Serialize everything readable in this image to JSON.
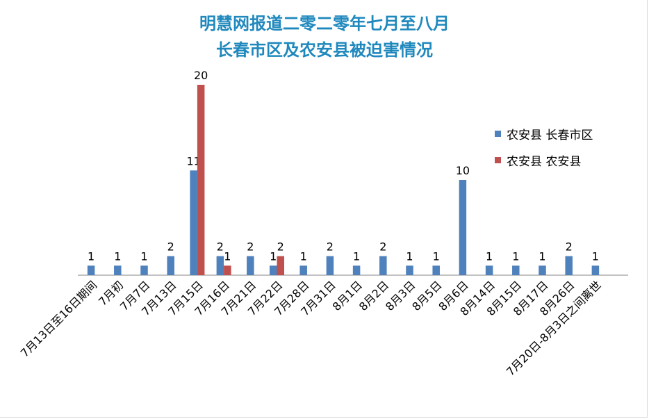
{
  "chart_data": {
    "type": "bar",
    "title_lines": [
      "明慧网报道二零二零年七月至八月",
      "长春市区及农安县被迫害情况"
    ],
    "categories": [
      "7月13日至16日期间",
      "7月初",
      "7月7日",
      "7月13日",
      "7月15日",
      "7月16日",
      "7月21日",
      "7月22日",
      "7月28日",
      "7月31日",
      "8月1日",
      "8月2日",
      "8月3日",
      "8月5日",
      "8月6日",
      "8月14日",
      "8月15日",
      "8月17日",
      "8月26日",
      "7月20日-8月3日之间离世"
    ],
    "series": [
      {
        "name": "农安县 长春市区",
        "color": "#4f81bd",
        "values": [
          1,
          1,
          1,
          2,
          11,
          2,
          2,
          1,
          1,
          2,
          1,
          2,
          1,
          1,
          10,
          1,
          1,
          1,
          2,
          1
        ]
      },
      {
        "name": "农安县 农安县",
        "color": "#c0504d",
        "values": [
          null,
          null,
          null,
          null,
          20,
          1,
          null,
          2,
          null,
          null,
          null,
          null,
          null,
          null,
          null,
          null,
          null,
          null,
          null,
          null
        ]
      }
    ],
    "ylim": [
      0,
      20
    ],
    "grid": false,
    "legend_position": "right"
  }
}
